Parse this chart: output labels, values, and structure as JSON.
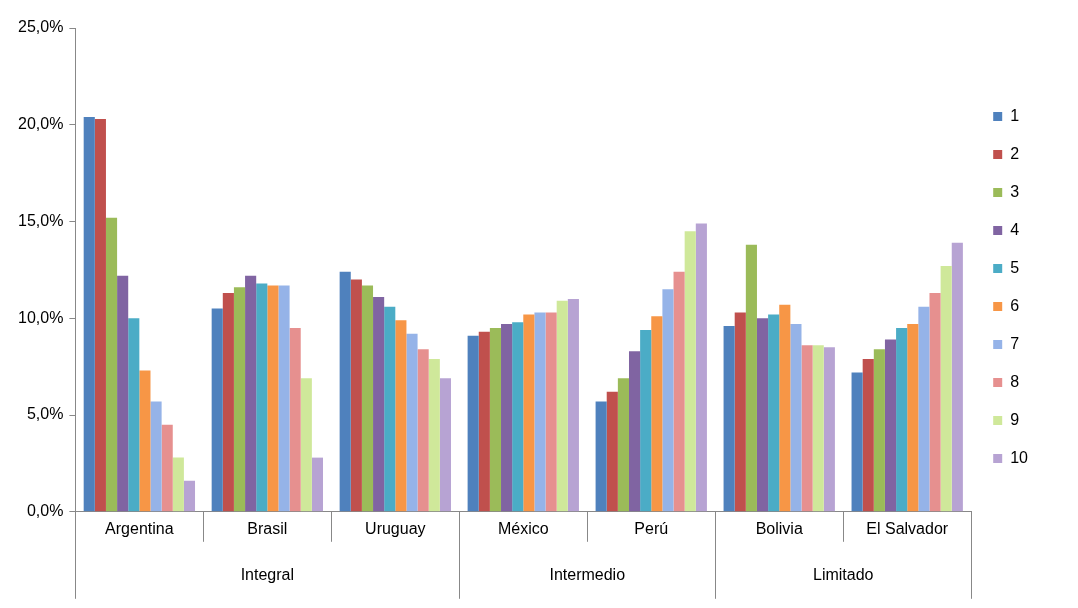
{
  "chart_data": {
    "type": "bar",
    "categories": [
      "Argentina",
      "Brasil",
      "Uruguay",
      "México",
      "Perú",
      "Bolivia",
      "El Salvador"
    ],
    "series": [
      {
        "name": "1",
        "color": "#4f81bd",
        "values": [
          20.4,
          10.5,
          12.4,
          9.1,
          5.7,
          9.6,
          7.2
        ]
      },
      {
        "name": "2",
        "color": "#c0504d",
        "values": [
          20.3,
          11.3,
          12.0,
          9.3,
          6.2,
          10.3,
          7.9
        ]
      },
      {
        "name": "3",
        "color": "#9bbb59",
        "values": [
          15.2,
          11.6,
          11.7,
          9.5,
          6.9,
          13.8,
          8.4
        ]
      },
      {
        "name": "4",
        "color": "#8064a2",
        "values": [
          12.2,
          12.2,
          11.1,
          9.7,
          8.3,
          10.0,
          8.9
        ]
      },
      {
        "name": "5",
        "color": "#4bacc6",
        "values": [
          10.0,
          11.8,
          10.6,
          9.8,
          9.4,
          10.2,
          9.5
        ]
      },
      {
        "name": "6",
        "color": "#f79646",
        "values": [
          7.3,
          11.7,
          9.9,
          10.2,
          10.1,
          10.7,
          9.7
        ]
      },
      {
        "name": "7",
        "color": "#95b3e8",
        "values": [
          5.7,
          11.7,
          9.2,
          10.3,
          11.5,
          9.7,
          10.6
        ]
      },
      {
        "name": "8",
        "color": "#e6908f",
        "values": [
          4.5,
          9.5,
          8.4,
          10.3,
          12.4,
          8.6,
          11.3
        ]
      },
      {
        "name": "9",
        "color": "#cfe89a",
        "values": [
          2.8,
          6.9,
          7.9,
          10.9,
          14.5,
          8.6,
          12.7
        ]
      },
      {
        "name": "10",
        "color": "#b7a3d3",
        "values": [
          1.6,
          2.8,
          6.9,
          11.0,
          14.9,
          8.5,
          13.9
        ]
      }
    ],
    "ylim": [
      0,
      25
    ],
    "yticks": [
      {
        "value": 0,
        "label": "0,0%"
      },
      {
        "value": 5,
        "label": "5,0%"
      },
      {
        "value": 10,
        "label": "10,0%"
      },
      {
        "value": 15,
        "label": "15,0%"
      },
      {
        "value": 20,
        "label": "20,0%"
      },
      {
        "value": 25,
        "label": "25,0%"
      }
    ],
    "annotations": [
      "Integral",
      "Intermedio",
      "Limitado"
    ],
    "grid": false,
    "legend": "right"
  }
}
